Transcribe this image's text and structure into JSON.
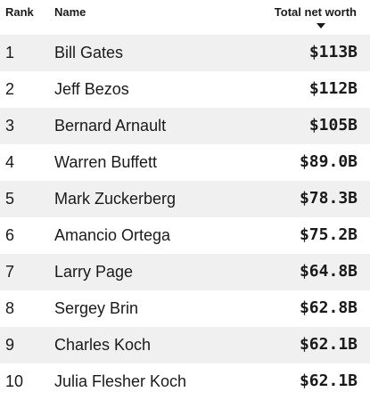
{
  "header": {
    "rank": "Rank",
    "name": "Name",
    "worth": "Total net worth",
    "sort_icon": "sort-descending-icon"
  },
  "colors": {
    "stripe": "#f0f0f0",
    "text": "#1a1a1a"
  },
  "rows": [
    {
      "rank": "1",
      "name": "Bill Gates",
      "worth": "$113B"
    },
    {
      "rank": "2",
      "name": "Jeff Bezos",
      "worth": "$112B"
    },
    {
      "rank": "3",
      "name": "Bernard Arnault",
      "worth": "$105B"
    },
    {
      "rank": "4",
      "name": "Warren Buffett",
      "worth": "$89.0B"
    },
    {
      "rank": "5",
      "name": "Mark Zuckerberg",
      "worth": "$78.3B"
    },
    {
      "rank": "6",
      "name": "Amancio Ortega",
      "worth": "$75.2B"
    },
    {
      "rank": "7",
      "name": "Larry Page",
      "worth": "$64.8B"
    },
    {
      "rank": "8",
      "name": "Sergey Brin",
      "worth": "$62.8B"
    },
    {
      "rank": "9",
      "name": "Charles Koch",
      "worth": "$62.1B"
    },
    {
      "rank": "10",
      "name": "Julia Flesher Koch",
      "worth": "$62.1B"
    }
  ]
}
